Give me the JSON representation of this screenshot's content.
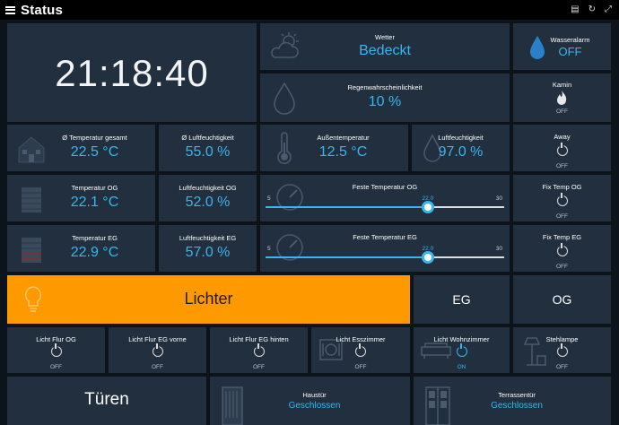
{
  "header": {
    "title": "Status"
  },
  "clock": {
    "time": "21:18:40"
  },
  "weather": {
    "label": "Wetter",
    "value": "Bedeckt"
  },
  "water_alarm": {
    "label": "Wasseralarm",
    "value": "OFF"
  },
  "rain": {
    "label": "Regenwahrscheinlichkeit",
    "value": "10 %"
  },
  "fireplace": {
    "label": "Kamin",
    "state": "OFF"
  },
  "temp_total": {
    "label": "Ø Temperatur gesamt",
    "value": "22.5 °C"
  },
  "hum_total": {
    "label": "Ø Luftfeuchtigkeit",
    "value": "55.0 %"
  },
  "outside_temp": {
    "label": "Außentemperatur",
    "value": "12.5 °C"
  },
  "outside_hum": {
    "label": "Luftfeuchtigkeit",
    "value": "97.0 %"
  },
  "away": {
    "label": "Away",
    "state": "OFF"
  },
  "temp_og": {
    "label": "Temperatur OG",
    "value": "22.1 °C"
  },
  "hum_og": {
    "label": "Luftfeuchtigkeit OG",
    "value": "52.0 %"
  },
  "fixed_og": {
    "label": "Feste Temperatur OG",
    "min": "5",
    "max": "30",
    "value": "22.0",
    "level": 22
  },
  "fixtemp_og": {
    "label": "Fix Temp OG",
    "state": "OFF"
  },
  "temp_eg": {
    "label": "Temperatur EG",
    "value": "22.9 °C"
  },
  "hum_eg": {
    "label": "Luftfeuchtigkeit EG",
    "value": "57.0 %"
  },
  "fixed_eg": {
    "label": "Feste Temperatur EG",
    "min": "5",
    "max": "30",
    "value": "22.0",
    "level": 22
  },
  "fixtemp_eg": {
    "label": "Fix Temp EG",
    "state": "OFF"
  },
  "lights_nav": {
    "label": "Lichter"
  },
  "nav_eg": {
    "label": "EG"
  },
  "nav_og": {
    "label": "OG"
  },
  "lights": [
    {
      "label": "Licht Flur OG",
      "state": "OFF"
    },
    {
      "label": "Licht Flur EG vorne",
      "state": "OFF"
    },
    {
      "label": "Licht Flur EG hinten",
      "state": "OFF"
    },
    {
      "label": "Licht Esszimmer",
      "state": "OFF"
    },
    {
      "label": "Licht Wohnzimmer",
      "state": "ON"
    },
    {
      "label": "Stehlampe",
      "state": "OFF"
    }
  ],
  "doors_nav": {
    "label": "Türen"
  },
  "front_door": {
    "label": "Haustür",
    "value": "Geschlossen"
  },
  "terrace_door": {
    "label": "Terrassentür",
    "value": "Geschlossen"
  },
  "colors": {
    "accent": "#39b5f0",
    "tile": "#212f3e",
    "orange": "#ff9900",
    "background": "#0d131b"
  }
}
